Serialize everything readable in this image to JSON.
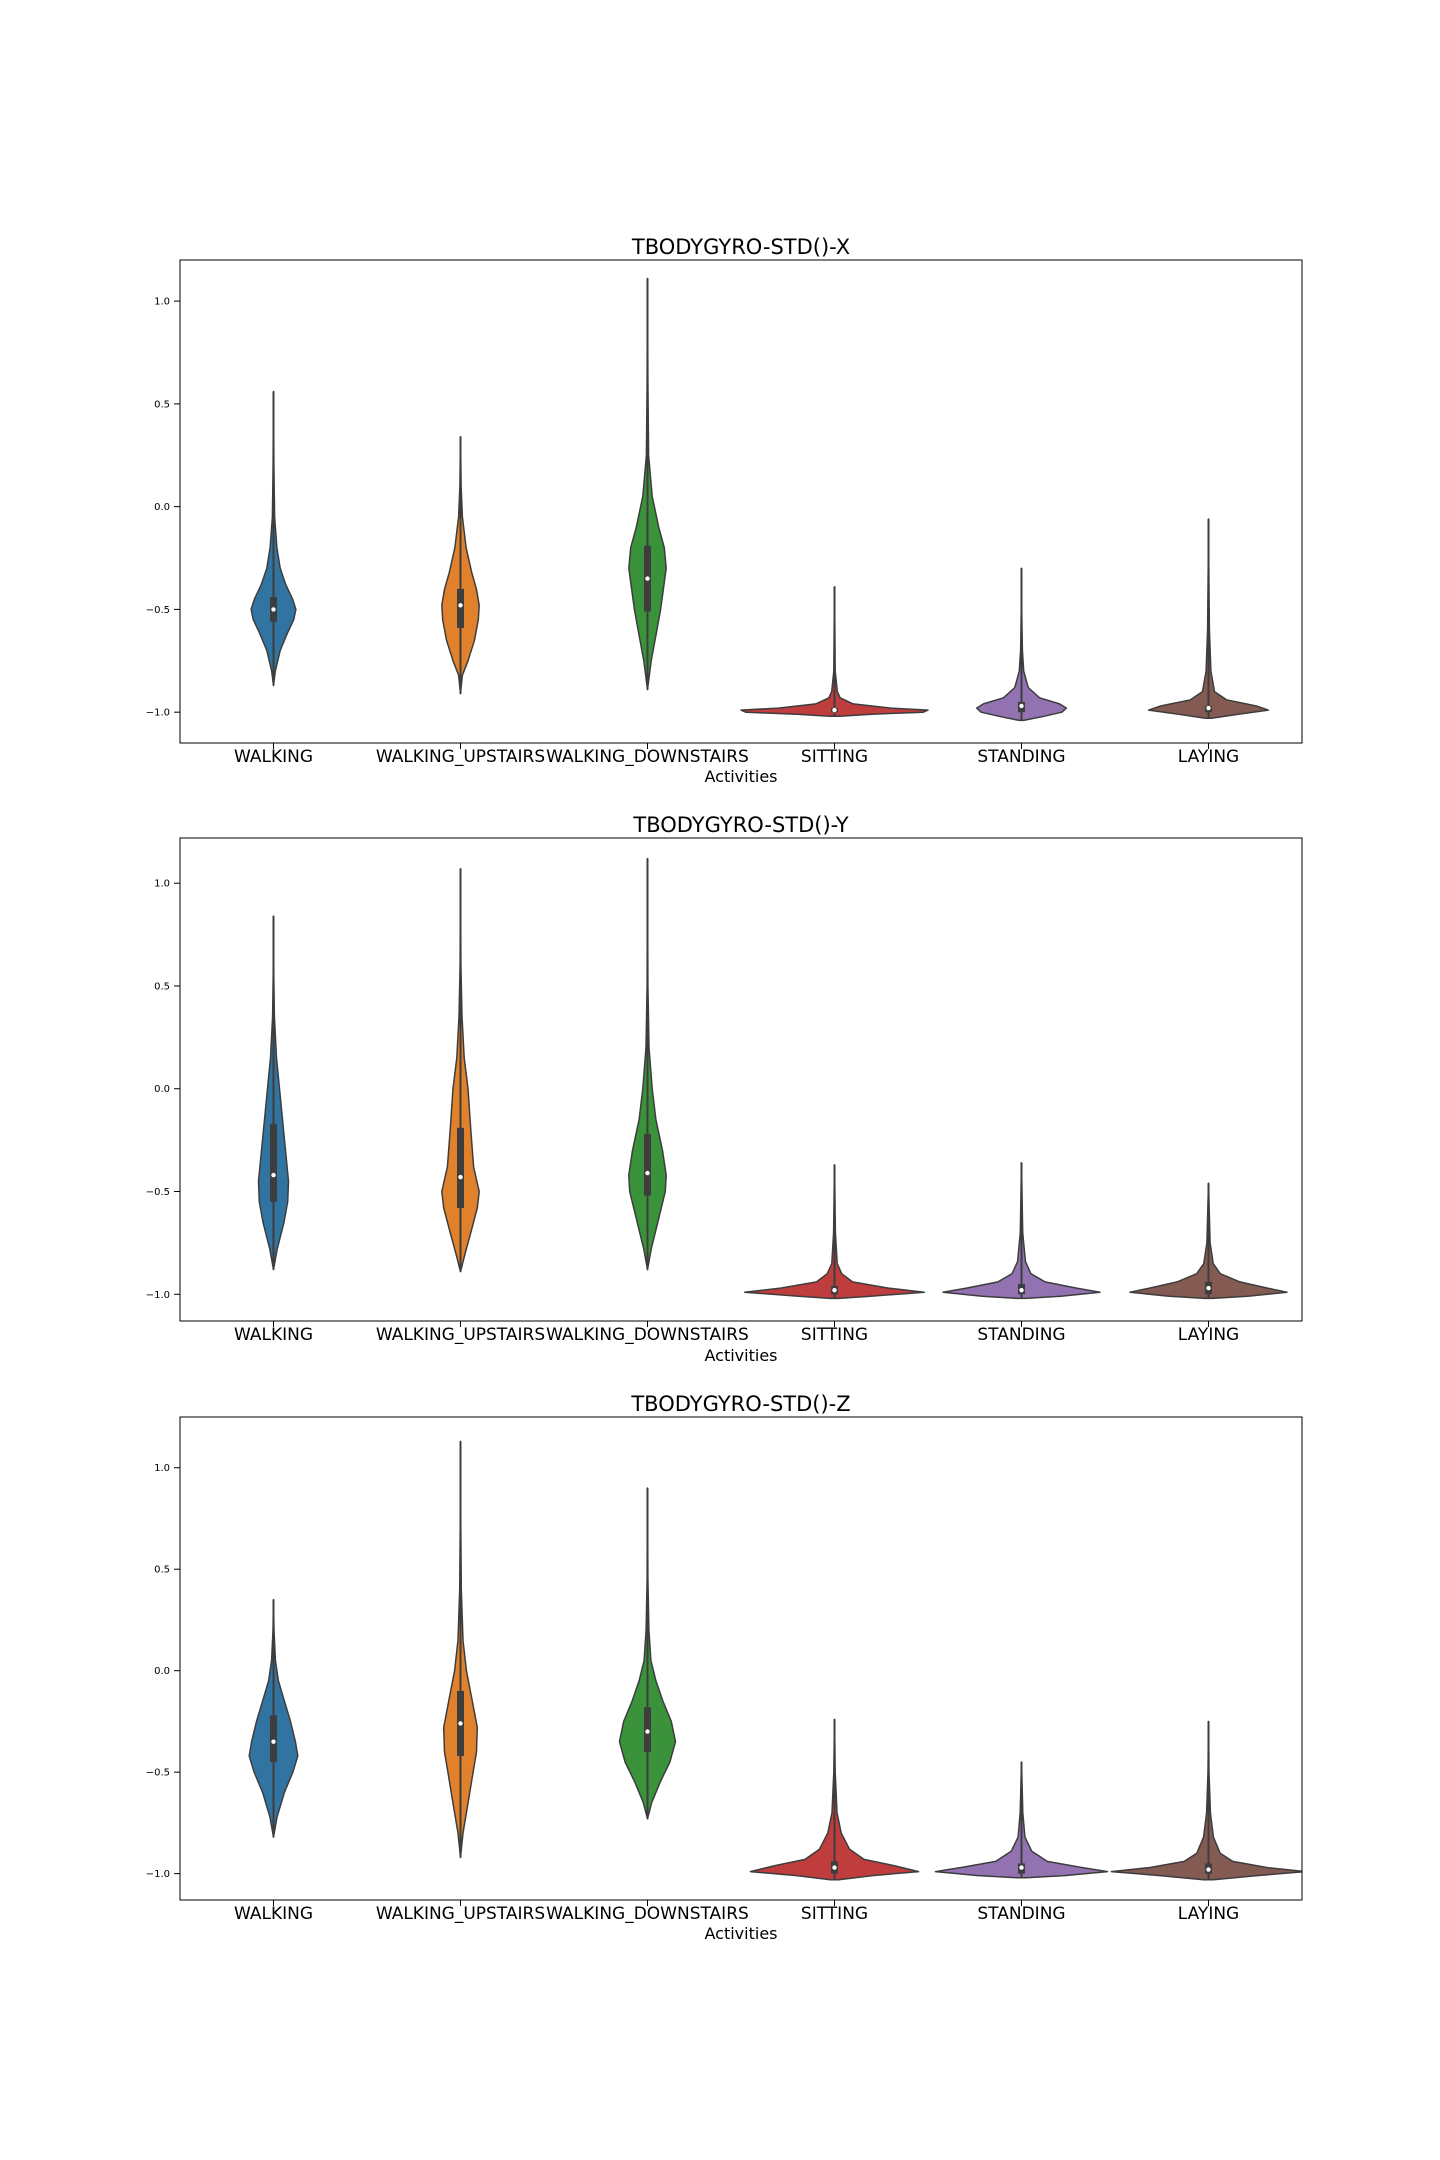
{
  "chart_data": [
    {
      "type": "violin",
      "title": "TBODYGYRO-STD()-X",
      "xlabel": "Activities",
      "ylabel": "",
      "ylim": [
        -1.15,
        1.2
      ],
      "yticks": [
        -1.0,
        -0.5,
        0.0,
        0.5,
        1.0
      ],
      "ytick_labels": [
        "−1.0",
        "−0.5",
        "0.0",
        "0.5",
        "1.0"
      ],
      "grid": false,
      "categories": [
        "WALKING",
        "WALKING_UPSTAIRS",
        "WALKING_DOWNSTAIRS",
        "SITTING",
        "STANDING",
        "LAYING"
      ],
      "violins": [
        {
          "min": -0.87,
          "max": 0.56,
          "q1": -0.56,
          "median": -0.5,
          "q3": -0.44,
          "halfwidth": 0.12,
          "profile": [
            [
              -0.87,
              0
            ],
            [
              -0.8,
              0.08
            ],
            [
              -0.7,
              0.3
            ],
            [
              -0.62,
              0.6
            ],
            [
              -0.55,
              0.9
            ],
            [
              -0.5,
              1.0
            ],
            [
              -0.45,
              0.85
            ],
            [
              -0.38,
              0.55
            ],
            [
              -0.3,
              0.3
            ],
            [
              -0.2,
              0.15
            ],
            [
              -0.05,
              0.05
            ],
            [
              0.2,
              0.02
            ],
            [
              0.56,
              0
            ]
          ]
        },
        {
          "min": -0.91,
          "max": 0.34,
          "q1": -0.59,
          "median": -0.48,
          "q3": -0.4,
          "halfwidth": 0.1,
          "profile": [
            [
              -0.91,
              0
            ],
            [
              -0.82,
              0.1
            ],
            [
              -0.75,
              0.4
            ],
            [
              -0.65,
              0.75
            ],
            [
              -0.55,
              0.95
            ],
            [
              -0.48,
              1.0
            ],
            [
              -0.4,
              0.85
            ],
            [
              -0.32,
              0.6
            ],
            [
              -0.2,
              0.3
            ],
            [
              -0.05,
              0.1
            ],
            [
              0.1,
              0.03
            ],
            [
              0.34,
              0
            ]
          ]
        },
        {
          "min": -0.89,
          "max": 1.11,
          "q1": -0.51,
          "median": -0.35,
          "q3": -0.19,
          "halfwidth": 0.1,
          "profile": [
            [
              -0.89,
              0
            ],
            [
              -0.75,
              0.2
            ],
            [
              -0.6,
              0.5
            ],
            [
              -0.5,
              0.7
            ],
            [
              -0.4,
              0.85
            ],
            [
              -0.3,
              1.0
            ],
            [
              -0.2,
              0.9
            ],
            [
              -0.1,
              0.6
            ],
            [
              0.05,
              0.25
            ],
            [
              0.25,
              0.06
            ],
            [
              0.6,
              0.02
            ],
            [
              1.11,
              0
            ]
          ]
        },
        {
          "min": -1.02,
          "max": -0.39,
          "q1": -1.0,
          "median": -0.99,
          "q3": -0.98,
          "halfwidth": 0.5,
          "profile": [
            [
              -1.02,
              0.05
            ],
            [
              -1.01,
              0.4
            ],
            [
              -1.0,
              0.95
            ],
            [
              -0.99,
              1.0
            ],
            [
              -0.98,
              0.6
            ],
            [
              -0.96,
              0.2
            ],
            [
              -0.93,
              0.06
            ],
            [
              -0.9,
              0.03
            ],
            [
              -0.8,
              0.008
            ],
            [
              -0.39,
              0
            ]
          ]
        },
        {
          "min": -1.04,
          "max": -0.3,
          "q1": -1.0,
          "median": -0.97,
          "q3": -0.95,
          "halfwidth": 0.24,
          "profile": [
            [
              -1.04,
              0.05
            ],
            [
              -1.02,
              0.5
            ],
            [
              -1.0,
              0.9
            ],
            [
              -0.98,
              1.0
            ],
            [
              -0.96,
              0.85
            ],
            [
              -0.93,
              0.4
            ],
            [
              -0.88,
              0.15
            ],
            [
              -0.8,
              0.05
            ],
            [
              -0.7,
              0.02
            ],
            [
              -0.5,
              0.005
            ],
            [
              -0.3,
              0
            ]
          ]
        },
        {
          "min": -1.03,
          "max": -0.06,
          "q1": -1.0,
          "median": -0.98,
          "q3": -0.97,
          "halfwidth": 0.32,
          "profile": [
            [
              -1.03,
              0.05
            ],
            [
              -1.01,
              0.5
            ],
            [
              -0.99,
              1.0
            ],
            [
              -0.97,
              0.8
            ],
            [
              -0.94,
              0.3
            ],
            [
              -0.9,
              0.1
            ],
            [
              -0.8,
              0.04
            ],
            [
              -0.6,
              0.015
            ],
            [
              -0.3,
              0.005
            ],
            [
              -0.06,
              0
            ]
          ]
        }
      ]
    },
    {
      "type": "violin",
      "title": "TBODYGYRO-STD()-Y",
      "xlabel": "Activities",
      "ylabel": "",
      "ylim": [
        -1.13,
        1.22
      ],
      "yticks": [
        -1.0,
        -0.5,
        0.0,
        0.5,
        1.0
      ],
      "ytick_labels": [
        "−1.0",
        "−0.5",
        "0.0",
        "0.5",
        "1.0"
      ],
      "grid": false,
      "categories": [
        "WALKING",
        "WALKING_UPSTAIRS",
        "WALKING_DOWNSTAIRS",
        "SITTING",
        "STANDING",
        "LAYING"
      ],
      "violins": [
        {
          "min": -0.88,
          "max": 0.84,
          "q1": -0.55,
          "median": -0.42,
          "q3": -0.17,
          "halfwidth": 0.08,
          "profile": [
            [
              -0.88,
              0
            ],
            [
              -0.78,
              0.25
            ],
            [
              -0.65,
              0.7
            ],
            [
              -0.55,
              0.95
            ],
            [
              -0.45,
              1.0
            ],
            [
              -0.3,
              0.8
            ],
            [
              -0.15,
              0.6
            ],
            [
              0.0,
              0.4
            ],
            [
              0.15,
              0.2
            ],
            [
              0.35,
              0.06
            ],
            [
              0.55,
              0.02
            ],
            [
              0.84,
              0
            ]
          ]
        },
        {
          "min": -0.89,
          "max": 1.07,
          "q1": -0.58,
          "median": -0.43,
          "q3": -0.19,
          "halfwidth": 0.1,
          "profile": [
            [
              -0.89,
              0
            ],
            [
              -0.8,
              0.25
            ],
            [
              -0.7,
              0.55
            ],
            [
              -0.58,
              0.9
            ],
            [
              -0.5,
              1.0
            ],
            [
              -0.38,
              0.7
            ],
            [
              -0.2,
              0.55
            ],
            [
              0.0,
              0.4
            ],
            [
              0.15,
              0.2
            ],
            [
              0.35,
              0.08
            ],
            [
              0.6,
              0.02
            ],
            [
              1.07,
              0
            ]
          ]
        },
        {
          "min": -0.88,
          "max": 1.12,
          "q1": -0.52,
          "median": -0.41,
          "q3": -0.22,
          "halfwidth": 0.1,
          "profile": [
            [
              -0.88,
              0
            ],
            [
              -0.78,
              0.2
            ],
            [
              -0.65,
              0.55
            ],
            [
              -0.5,
              0.95
            ],
            [
              -0.42,
              1.0
            ],
            [
              -0.3,
              0.8
            ],
            [
              -0.15,
              0.45
            ],
            [
              0.0,
              0.25
            ],
            [
              0.2,
              0.08
            ],
            [
              0.5,
              0.02
            ],
            [
              1.12,
              0
            ]
          ]
        },
        {
          "min": -1.02,
          "max": -0.37,
          "q1": -1.0,
          "median": -0.98,
          "q3": -0.96,
          "halfwidth": 0.48,
          "profile": [
            [
              -1.02,
              0.05
            ],
            [
              -1.01,
              0.4
            ],
            [
              -0.99,
              1.0
            ],
            [
              -0.97,
              0.6
            ],
            [
              -0.94,
              0.2
            ],
            [
              -0.9,
              0.08
            ],
            [
              -0.85,
              0.03
            ],
            [
              -0.7,
              0.01
            ],
            [
              -0.37,
              0
            ]
          ]
        },
        {
          "min": -1.02,
          "max": -0.36,
          "q1": -1.0,
          "median": -0.98,
          "q3": -0.95,
          "halfwidth": 0.42,
          "profile": [
            [
              -1.02,
              0.05
            ],
            [
              -1.01,
              0.5
            ],
            [
              -0.99,
              1.0
            ],
            [
              -0.97,
              0.7
            ],
            [
              -0.94,
              0.3
            ],
            [
              -0.9,
              0.12
            ],
            [
              -0.84,
              0.05
            ],
            [
              -0.7,
              0.015
            ],
            [
              -0.36,
              0
            ]
          ]
        },
        {
          "min": -1.02,
          "max": -0.46,
          "q1": -1.0,
          "median": -0.97,
          "q3": -0.94,
          "halfwidth": 0.42,
          "profile": [
            [
              -1.02,
              0.05
            ],
            [
              -1.01,
              0.5
            ],
            [
              -0.99,
              1.0
            ],
            [
              -0.97,
              0.75
            ],
            [
              -0.94,
              0.4
            ],
            [
              -0.9,
              0.15
            ],
            [
              -0.85,
              0.06
            ],
            [
              -0.75,
              0.02
            ],
            [
              -0.46,
              0
            ]
          ]
        }
      ]
    },
    {
      "type": "violin",
      "title": "TBODYGYRO-STD()-Z",
      "xlabel": "Activities",
      "ylabel": "",
      "ylim": [
        -1.13,
        1.25
      ],
      "yticks": [
        -1.0,
        -0.5,
        0.0,
        0.5,
        1.0
      ],
      "ytick_labels": [
        "−1.0",
        "−0.5",
        "0.0",
        "0.5",
        "1.0"
      ],
      "grid": false,
      "categories": [
        "WALKING",
        "WALKING_UPSTAIRS",
        "WALKING_DOWNSTAIRS",
        "SITTING",
        "STANDING",
        "LAYING"
      ],
      "violins": [
        {
          "min": -0.82,
          "max": 0.35,
          "q1": -0.45,
          "median": -0.35,
          "q3": -0.22,
          "halfwidth": 0.13,
          "profile": [
            [
              -0.82,
              0
            ],
            [
              -0.72,
              0.15
            ],
            [
              -0.6,
              0.45
            ],
            [
              -0.5,
              0.8
            ],
            [
              -0.42,
              1.0
            ],
            [
              -0.35,
              0.9
            ],
            [
              -0.25,
              0.7
            ],
            [
              -0.15,
              0.45
            ],
            [
              -0.05,
              0.2
            ],
            [
              0.05,
              0.08
            ],
            [
              0.2,
              0.02
            ],
            [
              0.35,
              0
            ]
          ]
        },
        {
          "min": -0.92,
          "max": 1.13,
          "q1": -0.42,
          "median": -0.26,
          "q3": -0.1,
          "halfwidth": 0.09,
          "profile": [
            [
              -0.92,
              0
            ],
            [
              -0.8,
              0.15
            ],
            [
              -0.65,
              0.45
            ],
            [
              -0.5,
              0.75
            ],
            [
              -0.4,
              0.95
            ],
            [
              -0.28,
              1.0
            ],
            [
              -0.15,
              0.7
            ],
            [
              0.0,
              0.35
            ],
            [
              0.15,
              0.15
            ],
            [
              0.4,
              0.05
            ],
            [
              0.7,
              0.02
            ],
            [
              1.13,
              0
            ]
          ]
        },
        {
          "min": -0.73,
          "max": 0.9,
          "q1": -0.4,
          "median": -0.3,
          "q3": -0.18,
          "halfwidth": 0.15,
          "profile": [
            [
              -0.73,
              0
            ],
            [
              -0.65,
              0.15
            ],
            [
              -0.55,
              0.45
            ],
            [
              -0.45,
              0.8
            ],
            [
              -0.35,
              1.0
            ],
            [
              -0.25,
              0.85
            ],
            [
              -0.15,
              0.55
            ],
            [
              -0.05,
              0.3
            ],
            [
              0.05,
              0.12
            ],
            [
              0.2,
              0.05
            ],
            [
              0.45,
              0.015
            ],
            [
              0.9,
              0
            ]
          ]
        },
        {
          "min": -1.03,
          "max": -0.24,
          "q1": -1.0,
          "median": -0.97,
          "q3": -0.94,
          "halfwidth": 0.45,
          "profile": [
            [
              -1.03,
              0.05
            ],
            [
              -1.01,
              0.45
            ],
            [
              -0.99,
              1.0
            ],
            [
              -0.96,
              0.7
            ],
            [
              -0.93,
              0.35
            ],
            [
              -0.88,
              0.18
            ],
            [
              -0.8,
              0.08
            ],
            [
              -0.7,
              0.03
            ],
            [
              -0.5,
              0.008
            ],
            [
              -0.24,
              0
            ]
          ]
        },
        {
          "min": -1.02,
          "max": -0.45,
          "q1": -1.0,
          "median": -0.97,
          "q3": -0.95,
          "halfwidth": 0.46,
          "profile": [
            [
              -1.02,
              0.05
            ],
            [
              -1.01,
              0.5
            ],
            [
              -0.99,
              1.0
            ],
            [
              -0.97,
              0.7
            ],
            [
              -0.94,
              0.3
            ],
            [
              -0.89,
              0.12
            ],
            [
              -0.82,
              0.04
            ],
            [
              -0.7,
              0.015
            ],
            [
              -0.45,
              0
            ]
          ]
        },
        {
          "min": -1.03,
          "max": -0.25,
          "q1": -1.0,
          "median": -0.98,
          "q3": -0.95,
          "halfwidth": 0.52,
          "profile": [
            [
              -1.03,
              0.05
            ],
            [
              -1.01,
              0.5
            ],
            [
              -0.99,
              1.0
            ],
            [
              -0.97,
              0.6
            ],
            [
              -0.94,
              0.25
            ],
            [
              -0.9,
              0.12
            ],
            [
              -0.82,
              0.05
            ],
            [
              -0.7,
              0.02
            ],
            [
              -0.5,
              0.005
            ],
            [
              -0.25,
              0
            ]
          ]
        }
      ]
    }
  ],
  "colors": {
    "violins": [
      "#3274a1",
      "#e1812c",
      "#3a923a",
      "#c03d3e",
      "#9372b2",
      "#845b53"
    ],
    "box": "#3d3d3d",
    "median": "#ffffff",
    "frame": "#000000"
  }
}
